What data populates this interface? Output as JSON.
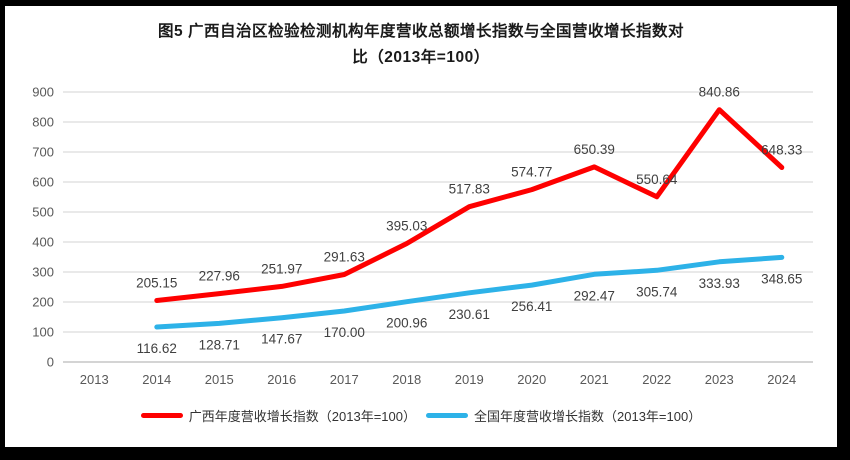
{
  "title": {
    "line1": "图5  广西自治区检验检测机构年度营收总额增长指数与全国营收增长指数对",
    "line2": "比（2013年=100）"
  },
  "chart_data": {
    "type": "line",
    "title": "图5 广西自治区检验检测机构年度营收总额增长指数与全国营收增长指数对比（2013年=100）",
    "categories": [
      "2013",
      "2014",
      "2015",
      "2016",
      "2017",
      "2018",
      "2019",
      "2020",
      "2021",
      "2022",
      "2023",
      "2024"
    ],
    "series": [
      {
        "name": "广西年度营收增长指数（2013年=100）",
        "color": "#fe0000",
        "label_position": "above",
        "values": [
          null,
          205.15,
          227.96,
          251.97,
          291.63,
          395.03,
          517.83,
          574.77,
          650.39,
          550.64,
          840.86,
          648.33
        ],
        "labels": [
          "",
          "205.15",
          "227.96",
          "251.97",
          "291.63",
          "395.03",
          "517.83",
          "574.77",
          "650.39",
          "550.64",
          "840.86",
          "648.33"
        ]
      },
      {
        "name": "全国年度营收增长指数（2013年=100）",
        "color": "#2db2e8",
        "label_position": "below",
        "values": [
          null,
          116.62,
          128.71,
          147.67,
          170.0,
          200.96,
          230.61,
          256.41,
          292.47,
          305.74,
          333.93,
          348.65
        ],
        "labels": [
          "",
          "116.62",
          "128.71",
          "147.67",
          "170.00",
          "200.96",
          "230.61",
          "256.41",
          "292.47",
          "305.74",
          "333.93",
          "348.65"
        ]
      }
    ],
    "ylim": [
      0,
      900
    ],
    "ytick_step": 100,
    "xlabel": "",
    "ylabel": "",
    "grid": "horizontal-only",
    "legend_position": "bottom",
    "colors": {
      "gridline": "#e2e2e2",
      "axis_line": "#c6c6c6",
      "tick_label": "#595959",
      "data_label": "#404040"
    }
  }
}
